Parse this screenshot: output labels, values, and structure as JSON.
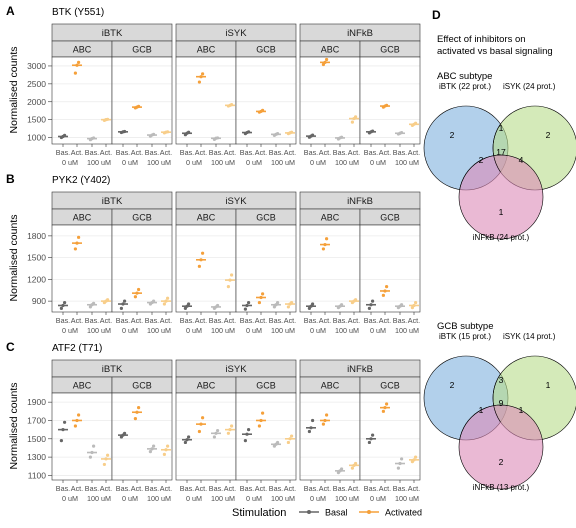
{
  "colors": {
    "basal": "#666666",
    "basal_light": "#bbbbbb",
    "activated": "#f5a03a",
    "activated_light": "#f8ce8a",
    "strip_bg": "#d9d9d9",
    "grid": "#ebebeb",
    "venn_a": "#7fb1de",
    "venn_b": "#b8dc8a",
    "venn_c": "#dc8ab8"
  },
  "x_tick_labels": [
    "Bas.",
    "Act.",
    "Bas.",
    "Act."
  ],
  "x_dose_labels": [
    "0 uM",
    "100 uM"
  ],
  "ylabel": "Normalised counts",
  "legend": {
    "title": "Stimulation",
    "items": [
      "Basal",
      "Activated"
    ]
  },
  "chart_data": [
    {
      "type": "scatter",
      "panel": "A",
      "title": "BTK (Y551)",
      "ylabel": "Normalised counts",
      "ylim": [
        820,
        3250
      ],
      "yticks": [
        1000,
        1500,
        2000,
        2500,
        3000
      ],
      "inhibitors": [
        "iBTK",
        "iSYK",
        "iNFkB"
      ],
      "subtypes": [
        "ABC",
        "GCB"
      ],
      "groups": [
        "Bas. 0 uM",
        "Act. 0 uM",
        "Bas. 100 uM",
        "Act. 100 uM"
      ],
      "facets": [
        {
          "inhibitor": "iBTK",
          "subtype": "ABC",
          "points": [
            [
              1000,
              1030,
              1060
            ],
            [
              2800,
              3020,
              3100
            ],
            [
              940,
              970,
              990
            ],
            [
              1480,
              1500,
              1510
            ]
          ]
        },
        {
          "inhibitor": "iBTK",
          "subtype": "GCB",
          "points": [
            [
              1140,
              1160,
              1170
            ],
            [
              1830,
              1850,
              1870
            ],
            [
              1040,
              1070,
              1090
            ],
            [
              1130,
              1150,
              1160
            ]
          ]
        },
        {
          "inhibitor": "iSYK",
          "subtype": "ABC",
          "points": [
            [
              1080,
              1120,
              1150
            ],
            [
              2550,
              2700,
              2780
            ],
            [
              950,
              980,
              990
            ],
            [
              1880,
              1900,
              1920
            ]
          ]
        },
        {
          "inhibitor": "iSYK",
          "subtype": "GCB",
          "points": [
            [
              1110,
              1140,
              1160
            ],
            [
              1710,
              1730,
              1760
            ],
            [
              1060,
              1090,
              1110
            ],
            [
              1110,
              1130,
              1150
            ]
          ]
        },
        {
          "inhibitor": "iNFkB",
          "subtype": "ABC",
          "points": [
            [
              1010,
              1040,
              1070
            ],
            [
              3040,
              3100,
              3180
            ],
            [
              960,
              990,
              1010
            ],
            [
              1430,
              1530,
              1580
            ]
          ]
        },
        {
          "inhibitor": "iNFkB",
          "subtype": "GCB",
          "points": [
            [
              1130,
              1160,
              1180
            ],
            [
              1850,
              1880,
              1900
            ],
            [
              1100,
              1120,
              1140
            ],
            [
              1340,
              1370,
              1400
            ]
          ]
        }
      ]
    },
    {
      "type": "scatter",
      "panel": "B",
      "title": "PYK2 (Y402)",
      "ylabel": "Normalised counts",
      "ylim": [
        750,
        1950
      ],
      "yticks": [
        900,
        1200,
        1500,
        1800
      ],
      "inhibitors": [
        "iBTK",
        "iSYK",
        "iNFkB"
      ],
      "subtypes": [
        "ABC",
        "GCB"
      ],
      "groups": [
        "Bas. 0 uM",
        "Act. 0 uM",
        "Bas. 100 uM",
        "Act. 100 uM"
      ],
      "facets": [
        {
          "inhibitor": "iBTK",
          "subtype": "ABC",
          "points": [
            [
              800,
              840,
              880
            ],
            [
              1620,
              1700,
              1780
            ],
            [
              820,
              850,
              870
            ],
            [
              880,
              900,
              920
            ]
          ]
        },
        {
          "inhibitor": "iBTK",
          "subtype": "GCB",
          "points": [
            [
              800,
              860,
              900
            ],
            [
              960,
              1010,
              1060
            ],
            [
              860,
              880,
              900
            ],
            [
              860,
              900,
              940
            ]
          ]
        },
        {
          "inhibitor": "iSYK",
          "subtype": "ABC",
          "points": [
            [
              800,
              830,
              860
            ],
            [
              1380,
              1470,
              1560
            ],
            [
              800,
              820,
              840
            ],
            [
              1100,
              1190,
              1260
            ]
          ]
        },
        {
          "inhibitor": "iSYK",
          "subtype": "GCB",
          "points": [
            [
              790,
              840,
              880
            ],
            [
              880,
              950,
              1000
            ],
            [
              820,
              850,
              880
            ],
            [
              820,
              860,
              880
            ]
          ]
        },
        {
          "inhibitor": "iNFkB",
          "subtype": "ABC",
          "points": [
            [
              800,
              830,
              860
            ],
            [
              1620,
              1680,
              1760
            ],
            [
              810,
              830,
              850
            ],
            [
              880,
              900,
              920
            ]
          ]
        },
        {
          "inhibitor": "iNFkB",
          "subtype": "GCB",
          "points": [
            [
              800,
              850,
              900
            ],
            [
              980,
              1040,
              1100
            ],
            [
              810,
              830,
              850
            ],
            [
              810,
              840,
              880
            ]
          ]
        }
      ]
    },
    {
      "type": "scatter",
      "panel": "C",
      "title": "ATF2 (T71)",
      "ylabel": "Normalised counts",
      "ylim": [
        1050,
        2000
      ],
      "yticks": [
        1100,
        1300,
        1500,
        1700,
        1900
      ],
      "inhibitors": [
        "iBTK",
        "iSYK",
        "iNFkB"
      ],
      "subtypes": [
        "ABC",
        "GCB"
      ],
      "groups": [
        "Bas. 0 uM",
        "Act. 0 uM",
        "Bas. 100 uM",
        "Act. 100 uM"
      ],
      "facets": [
        {
          "inhibitor": "iBTK",
          "subtype": "ABC",
          "points": [
            [
              1480,
              1600,
              1680
            ],
            [
              1640,
              1700,
              1760
            ],
            [
              1300,
              1350,
              1420
            ],
            [
              1220,
              1280,
              1320
            ]
          ]
        },
        {
          "inhibitor": "iBTK",
          "subtype": "GCB",
          "points": [
            [
              1520,
              1540,
              1560
            ],
            [
              1720,
              1790,
              1840
            ],
            [
              1360,
              1390,
              1420
            ],
            [
              1330,
              1380,
              1420
            ]
          ]
        },
        {
          "inhibitor": "iSYK",
          "subtype": "ABC",
          "points": [
            [
              1460,
              1490,
              1520
            ],
            [
              1580,
              1660,
              1730
            ],
            [
              1520,
              1560,
              1590
            ],
            [
              1560,
              1600,
              1640
            ]
          ]
        },
        {
          "inhibitor": "iSYK",
          "subtype": "GCB",
          "points": [
            [
              1480,
              1550,
              1600
            ],
            [
              1640,
              1700,
              1780
            ],
            [
              1420,
              1440,
              1460
            ],
            [
              1460,
              1500,
              1530
            ]
          ]
        },
        {
          "inhibitor": "iNFkB",
          "subtype": "ABC",
          "points": [
            [
              1580,
              1620,
              1700
            ],
            [
              1660,
              1700,
              1760
            ],
            [
              1130,
              1150,
              1170
            ],
            [
              1180,
              1210,
              1230
            ]
          ]
        },
        {
          "inhibitor": "iNFkB",
          "subtype": "GCB",
          "points": [
            [
              1460,
              1500,
              1540
            ],
            [
              1800,
              1840,
              1880
            ],
            [
              1180,
              1230,
              1280
            ],
            [
              1250,
              1270,
              1300
            ]
          ]
        }
      ]
    }
  ],
  "panel_d": {
    "label": "D",
    "heading_line1": "Effect of inhibitors on",
    "heading_line2": "activated vs basal signaling",
    "venns": [
      {
        "subtitle": "ABC subtype",
        "set_labels": [
          "iBTK (22 prot.)",
          "iSYK (24 prot.)",
          "iNFkB (24 prot.)"
        ],
        "regions": {
          "a_only": "2",
          "b_only": "2",
          "c_only": "1",
          "ab": "1",
          "ac": "2",
          "bc": "4",
          "abc": "17"
        }
      },
      {
        "subtitle": "GCB subtype",
        "set_labels": [
          "iBTK (15 prot.)",
          "iSYK (14 prot.)",
          "iNFkB (13 prot.)"
        ],
        "regions": {
          "a_only": "2",
          "b_only": "1",
          "c_only": "2",
          "ab": "3",
          "ac": "1",
          "bc": "1",
          "abc": "9"
        }
      }
    ]
  }
}
